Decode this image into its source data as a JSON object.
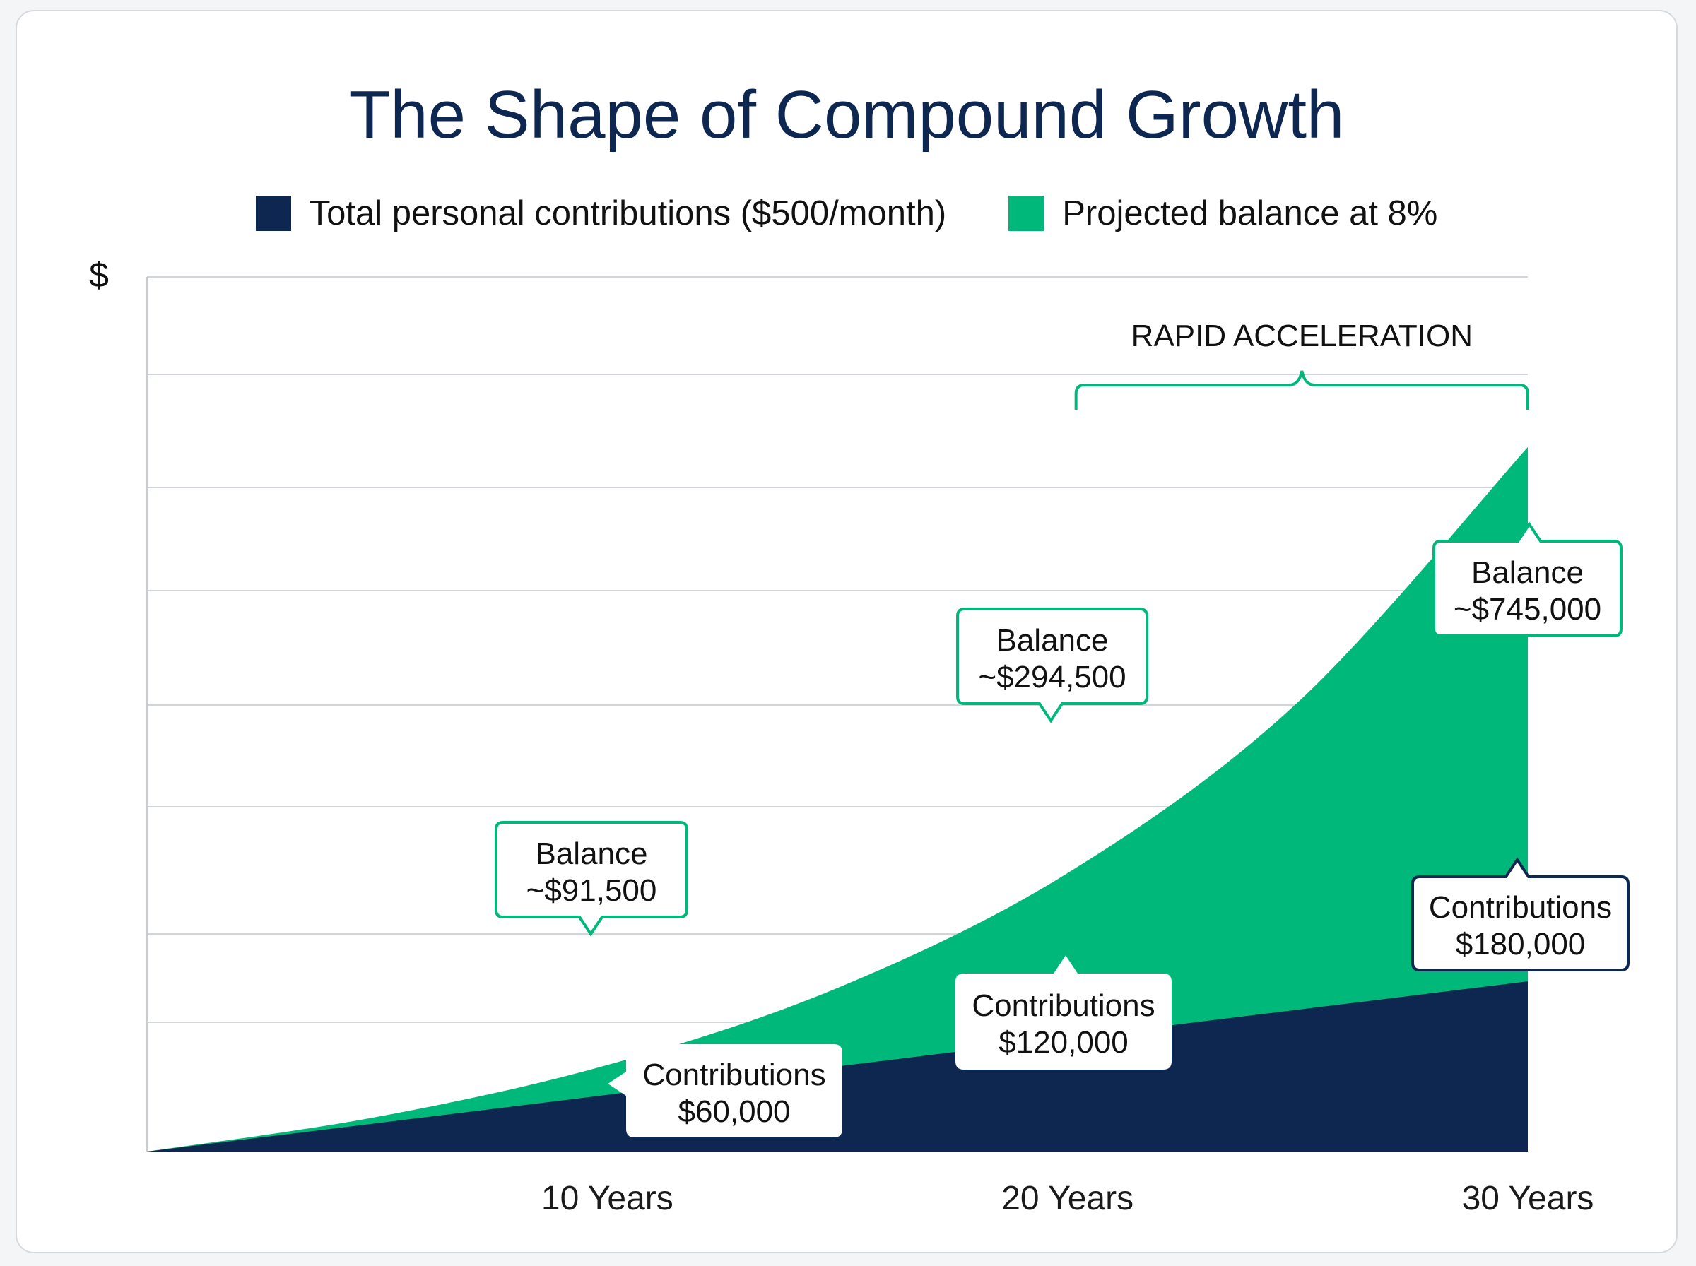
{
  "chart_data": {
    "type": "area",
    "title": "The Shape of Compound Growth",
    "ylabel": "$",
    "xlabel": "",
    "x": [
      0,
      5,
      10,
      15,
      20,
      25,
      30
    ],
    "xticks": [
      10,
      20,
      30
    ],
    "xtick_labels": [
      "10 Years",
      "20 Years",
      "30 Years"
    ],
    "xlim": [
      0,
      30
    ],
    "ylim": [
      0,
      925000
    ],
    "grid": true,
    "legend_position": "top",
    "series": [
      {
        "name": "Total personal contributions ($500/month)",
        "values": [
          0,
          30000,
          60000,
          90000,
          120000,
          150000,
          180000
        ],
        "color": "#0d2750"
      },
      {
        "name": "Projected balance at 8%",
        "values": [
          0,
          36700,
          91500,
          173000,
          294500,
          475000,
          745000
        ],
        "color": "#00b87a"
      }
    ],
    "callouts": [
      {
        "line1": "Balance",
        "line2": "~$91,500",
        "x": 10,
        "series": 1
      },
      {
        "line1": "Balance",
        "line2": "~$294,500",
        "x": 20,
        "series": 1
      },
      {
        "line1": "Balance",
        "line2": "~$745,000",
        "x": 30,
        "series": 1
      },
      {
        "line1": "Contributions",
        "line2": "$60,000",
        "x": 10,
        "series": 0
      },
      {
        "line1": "Contributions",
        "line2": "$120,000",
        "x": 20,
        "series": 0
      },
      {
        "line1": "Contributions",
        "line2": "$180,000",
        "x": 30,
        "series": 0
      }
    ],
    "annotation": {
      "text": "RAPID ACCELERATION",
      "x_start": 20,
      "x_end": 30
    }
  }
}
